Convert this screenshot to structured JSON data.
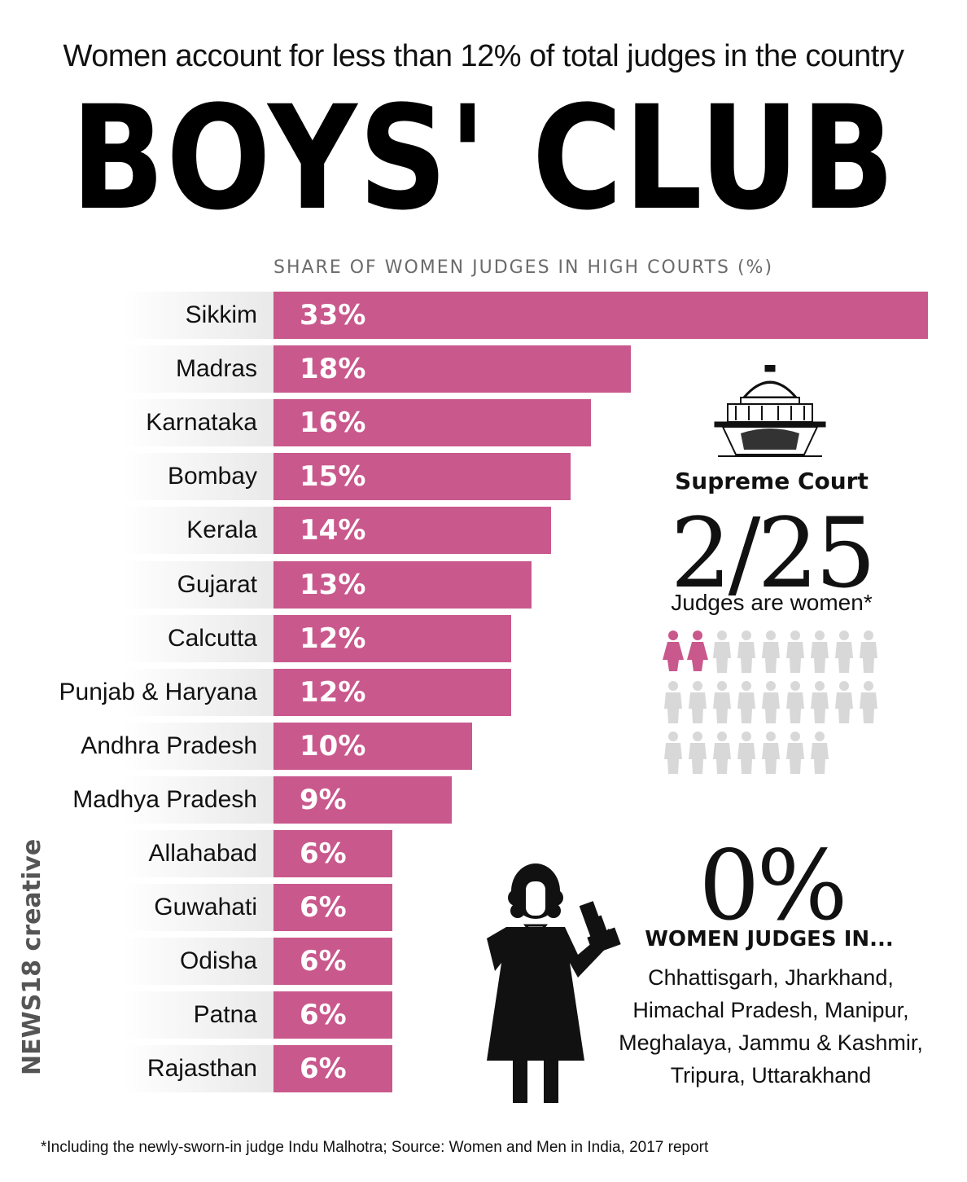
{
  "header": {
    "subtitle": "Women account for less than 12% of total judges in the country",
    "title": "BOYS' CLUB"
  },
  "chart_data": {
    "type": "bar",
    "orientation": "horizontal",
    "title": "SHARE OF WOMEN JUDGES IN HIGH COURTS (%)",
    "categories": [
      "Sikkim",
      "Madras",
      "Karnataka",
      "Bombay",
      "Kerala",
      "Gujarat",
      "Calcutta",
      "Punjab & Haryana",
      "Andhra Pradesh",
      "Madhya Pradesh",
      "Allahabad",
      "Guwahati",
      "Odisha",
      "Patna",
      "Rajasthan"
    ],
    "values": [
      33,
      18,
      16,
      15,
      14,
      13,
      12,
      12,
      10,
      9,
      6,
      6,
      6,
      6,
      6
    ],
    "value_labels": [
      "33%",
      "18%",
      "16%",
      "15%",
      "14%",
      "13%",
      "12%",
      "12%",
      "10%",
      "9%",
      "6%",
      "6%",
      "6%",
      "6%",
      "6%"
    ],
    "xlim": [
      0,
      33
    ],
    "grid": false,
    "bar_color": "#c9588c"
  },
  "supreme_court": {
    "title": "Supreme Court",
    "fraction": "2/25",
    "caption": "Judges are women*",
    "women_count": 2,
    "total_count": 25,
    "woman_color": "#c9588c",
    "man_color": "#d8d8d8",
    "building_icon": "supreme-court-building-icon",
    "person_icon": "person-icon"
  },
  "zero_panel": {
    "value": "0%",
    "heading": "WOMEN JUDGES IN...",
    "states": [
      "Chhattisgarh, Jharkhand,",
      "Himachal Pradesh, Manipur,",
      "Meghalaya, Jammu & Kashmir,",
      "Tripura, Uttarakhand"
    ],
    "figure_icon": "woman-judge-with-gavel-icon"
  },
  "brand": {
    "text": "NEWS18 creative"
  },
  "footnote": "*Including the newly-sworn-in judge Indu Malhotra; Source: Women and Men in India, 2017 report"
}
